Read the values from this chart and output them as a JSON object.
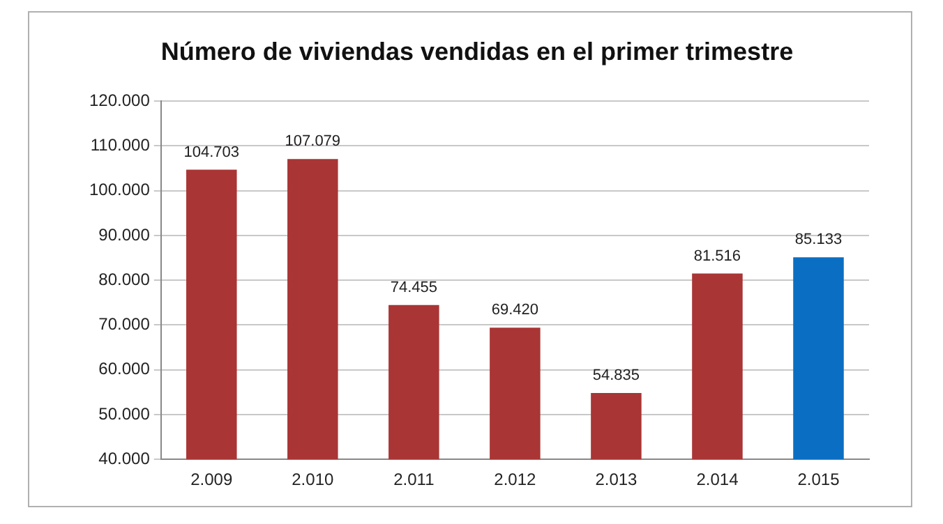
{
  "chart_data": {
    "type": "bar",
    "title": "Número de viviendas vendidas en el primer trimestre",
    "categories": [
      "2.009",
      "2.010",
      "2.011",
      "2.012",
      "2.013",
      "2.014",
      "2.015"
    ],
    "values": [
      104703,
      107079,
      74455,
      69420,
      54835,
      81516,
      85133
    ],
    "colors": [
      "#a93535",
      "#a93535",
      "#a93535",
      "#a93535",
      "#a93535",
      "#a93535",
      "#0a6fc2"
    ],
    "value_labels": [
      "104.703",
      "107.079",
      "74.455",
      "69.420",
      "54.835",
      "81.516",
      "85.133"
    ],
    "ylim": [
      40000,
      120000
    ],
    "yticks": [
      {
        "value": 40000,
        "label": "40.000"
      },
      {
        "value": 50000,
        "label": "50.000"
      },
      {
        "value": 60000,
        "label": "60.000"
      },
      {
        "value": 70000,
        "label": "70.000"
      },
      {
        "value": 80000,
        "label": "80.000"
      },
      {
        "value": 90000,
        "label": "90.000"
      },
      {
        "value": 100000,
        "label": "100.000"
      },
      {
        "value": 110000,
        "label": "110.000"
      },
      {
        "value": 120000,
        "label": "120.000"
      }
    ],
    "grid": "y",
    "legend": false
  }
}
